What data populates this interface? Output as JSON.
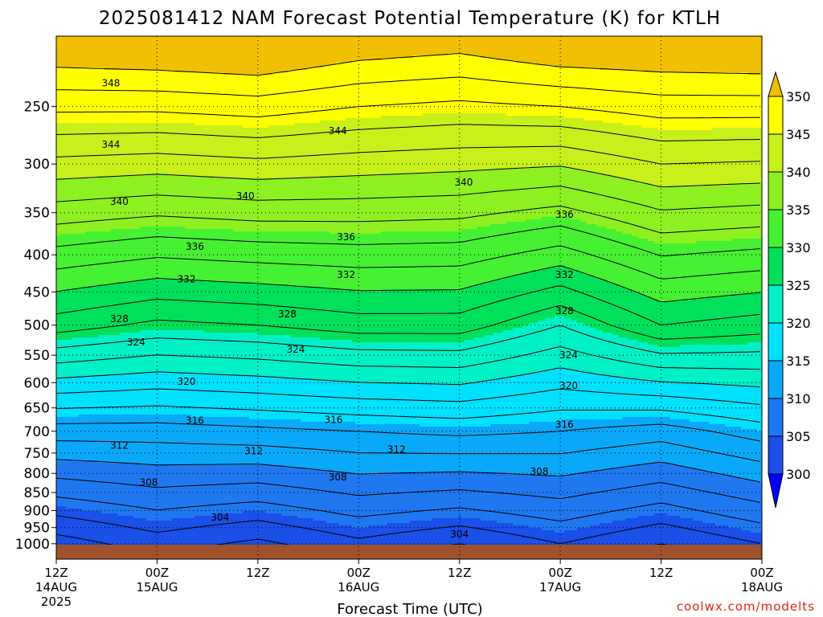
{
  "chart_data": {
    "type": "heatmap",
    "title": "2025081412 NAM Forecast Potential Temperature (K) for KTLH",
    "xlabel": "Forecast Time (UTC)",
    "ylabel": "",
    "credit": "coolwx.com/modelts",
    "y_scale": "log-pressure",
    "y_unit_hPa": "hPa",
    "ylim": [
      1050,
      200
    ],
    "xlim_hours": [
      0,
      84
    ],
    "x_ticks": [
      {
        "hour": 0,
        "label": "12Z",
        "date": "14AUG",
        "year": "2025"
      },
      {
        "hour": 12,
        "label": "00Z",
        "date": "15AUG",
        "year": ""
      },
      {
        "hour": 24,
        "label": "12Z",
        "date": "",
        "year": ""
      },
      {
        "hour": 36,
        "label": "00Z",
        "date": "16AUG",
        "year": ""
      },
      {
        "hour": 48,
        "label": "12Z",
        "date": "",
        "year": ""
      },
      {
        "hour": 60,
        "label": "00Z",
        "date": "17AUG",
        "year": ""
      },
      {
        "hour": 72,
        "label": "12Z",
        "date": "",
        "year": ""
      },
      {
        "hour": 84,
        "label": "00Z",
        "date": "18AUG",
        "year": ""
      }
    ],
    "y_ticks": [
      250,
      300,
      350,
      400,
      450,
      500,
      550,
      600,
      650,
      700,
      750,
      800,
      850,
      900,
      950,
      1000
    ],
    "colorbar": {
      "levels": [
        300,
        305,
        310,
        315,
        320,
        325,
        330,
        335,
        340,
        345,
        350
      ],
      "colors": [
        "#0000ff",
        "#1a4fe8",
        "#1f78f0",
        "#0aa8f8",
        "#00e0ff",
        "#00f0c8",
        "#00e05a",
        "#46f032",
        "#8ef021",
        "#c8f01a",
        "#ffff00",
        "#f0c000"
      ]
    },
    "ground_color": "#a0522d",
    "series": [
      {
        "name": "θ at 250 hPa",
        "unit": "K",
        "hours": [
          0,
          12,
          24,
          36,
          48,
          60,
          72,
          84
        ],
        "values": [
          346.5,
          346.5,
          347,
          346,
          345.5,
          346,
          347,
          347
        ]
      },
      {
        "name": "θ at 500 hPa",
        "unit": "K",
        "hours": [
          0,
          12,
          24,
          36,
          48,
          60,
          72,
          84
        ],
        "values": [
          327,
          325.5,
          326,
          327,
          327,
          324,
          328,
          327
        ]
      },
      {
        "name": "θ at 700 hPa",
        "unit": "K",
        "hours": [
          0,
          12,
          24,
          36,
          48,
          60,
          72,
          84
        ],
        "values": [
          313,
          313,
          313.5,
          314,
          314.5,
          314,
          313,
          315
        ]
      },
      {
        "name": "θ at 1000 hPa",
        "unit": "K",
        "hours": [
          0,
          12,
          24,
          36,
          48,
          60,
          72,
          84
        ],
        "values": [
          301,
          303,
          301.5,
          303.5,
          302,
          304,
          302,
          304
        ]
      }
    ],
    "contour_labels": [
      {
        "text": "348",
        "hour": 6.5,
        "p": 232
      },
      {
        "text": "344",
        "hour": 6.5,
        "p": 282
      },
      {
        "text": "344",
        "hour": 33.5,
        "p": 270
      },
      {
        "text": "340",
        "hour": 7.5,
        "p": 338
      },
      {
        "text": "340",
        "hour": 22.5,
        "p": 332
      },
      {
        "text": "340",
        "hour": 48.5,
        "p": 318
      },
      {
        "text": "336",
        "hour": 16.5,
        "p": 390
      },
      {
        "text": "336",
        "hour": 34.5,
        "p": 378
      },
      {
        "text": "336",
        "hour": 60.5,
        "p": 352
      },
      {
        "text": "332",
        "hour": 15.5,
        "p": 432
      },
      {
        "text": "332",
        "hour": 34.5,
        "p": 426
      },
      {
        "text": "332",
        "hour": 60.5,
        "p": 426
      },
      {
        "text": "328",
        "hour": 7.5,
        "p": 490
      },
      {
        "text": "328",
        "hour": 27.5,
        "p": 483
      },
      {
        "text": "328",
        "hour": 60.5,
        "p": 478
      },
      {
        "text": "324",
        "hour": 9.5,
        "p": 528
      },
      {
        "text": "324",
        "hour": 28.5,
        "p": 540
      },
      {
        "text": "324",
        "hour": 61,
        "p": 550
      },
      {
        "text": "320",
        "hour": 15.5,
        "p": 598
      },
      {
        "text": "320",
        "hour": 61,
        "p": 606
      },
      {
        "text": "316",
        "hour": 16.5,
        "p": 677
      },
      {
        "text": "316",
        "hour": 33,
        "p": 675
      },
      {
        "text": "316",
        "hour": 60.5,
        "p": 685
      },
      {
        "text": "312",
        "hour": 7.5,
        "p": 732
      },
      {
        "text": "312",
        "hour": 23.5,
        "p": 745
      },
      {
        "text": "312",
        "hour": 40.5,
        "p": 742
      },
      {
        "text": "308",
        "hour": 11,
        "p": 823
      },
      {
        "text": "308",
        "hour": 33.5,
        "p": 810
      },
      {
        "text": "308",
        "hour": 57.5,
        "p": 795
      },
      {
        "text": "304",
        "hour": 19.5,
        "p": 920
      },
      {
        "text": "304",
        "hour": 48,
        "p": 970
      }
    ]
  }
}
